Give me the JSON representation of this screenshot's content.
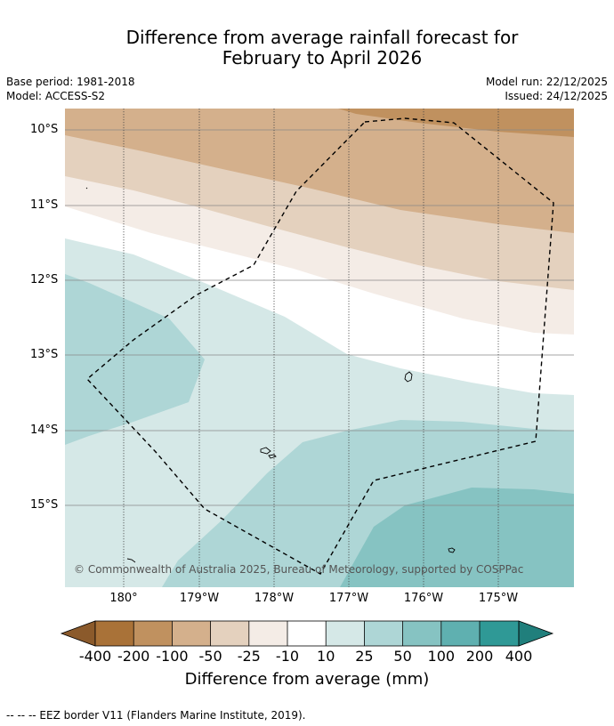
{
  "title_line1": "Difference from average rainfall forecast for",
  "title_line2": "February to April 2026",
  "base_period": "Base period: 1981-2018",
  "model": "Model: ACCESS-S2",
  "model_run": "Model run: 22/12/2025",
  "issued": "Issued: 24/12/2025",
  "lat_labels": [
    "10°S",
    "11°S",
    "12°S",
    "13°S",
    "14°S",
    "15°S"
  ],
  "lon_labels": [
    "180°",
    "179°W",
    "178°W",
    "177°W",
    "176°W",
    "175°W"
  ],
  "copyright": "© Commonwealth of Australia 2025, Bureau of Meteorology, supported by COSPPac",
  "colorbar": {
    "labels": [
      "-400",
      "-200",
      "-100",
      "-50",
      "-25",
      "-10",
      "10",
      "25",
      "50",
      "100",
      "200",
      "400"
    ],
    "colors": [
      "#8b5a2b",
      "#a97238",
      "#c0915f",
      "#d4b08c",
      "#e4d1be",
      "#f4ece6",
      "#ffffff",
      "#d5e8e7",
      "#aed6d6",
      "#86c3c2",
      "#5fb0b0",
      "#2f9996",
      "#207f7c"
    ],
    "title": "Difference from average (mm)"
  },
  "legend_footer": "--  --  -- EEZ border V11 (Flanders Marine Institute, 2019)."
}
